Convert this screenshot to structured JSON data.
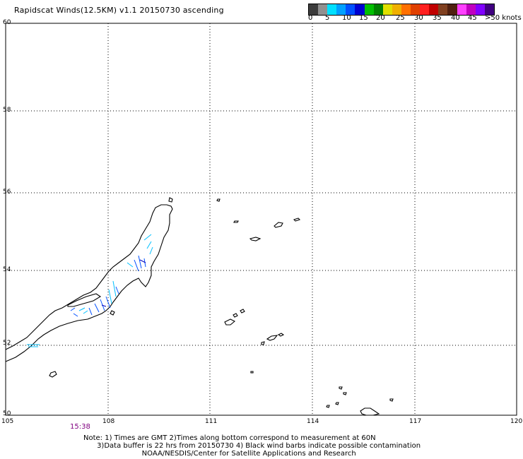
{
  "title": "Rapidscat Winds(12.5KM) v1.1 20150730 ascending",
  "legend": {
    "colors": [
      "#3c3c3c",
      "#909090",
      "#00e0ff",
      "#00a0ff",
      "#0050ff",
      "#0000d0",
      "#00c000",
      "#008000",
      "#e0e000",
      "#f0b000",
      "#ff7000",
      "#e04000",
      "#ff2020",
      "#c00000",
      "#804020",
      "#502010",
      "#ff40ff",
      "#c000c0",
      "#8000ff",
      "#400080"
    ],
    "labels": [
      "0",
      "5",
      "10",
      "15",
      "20",
      "25",
      "30",
      "35",
      "40",
      "45",
      ">50 knots"
    ]
  },
  "axes": {
    "lat_labels": [
      "60",
      "58",
      "56",
      "54",
      "52",
      "50"
    ],
    "lon_labels": [
      "105",
      "108",
      "111",
      "114",
      "117",
      "120"
    ]
  },
  "time_label": "15:38",
  "notes": [
    "Note: 1) Times are GMT 2)Times along bottom correspond to measurement at 60N",
    "      3)Data buffer is 22 hrs from 20150730 4) Black wind barbs indicate possible contamination",
    "                          NOAA/NESDIS/Center for Satellite Applications and Research"
  ]
}
